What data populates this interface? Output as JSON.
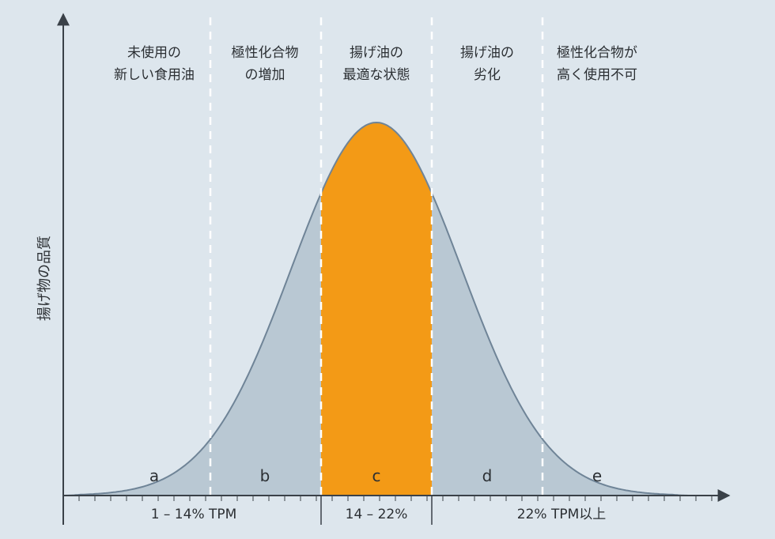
{
  "chart_data": {
    "type": "area",
    "ylabel": "揚げ物の品質",
    "zones": [
      {
        "letter": "a",
        "title": [
          "未使用の",
          "新しい食用油"
        ]
      },
      {
        "letter": "b",
        "title": [
          "極性化合物",
          "の増加"
        ]
      },
      {
        "letter": "c",
        "title": [
          "揚げ油の",
          "最適な状態"
        ]
      },
      {
        "letter": "d",
        "title": [
          "揚げ油の",
          "劣化"
        ]
      },
      {
        "letter": "e",
        "title": [
          "極性化合物が",
          "高く使用不可"
        ]
      }
    ],
    "ranges": [
      {
        "label": "1 – 14% TPM"
      },
      {
        "label": "14 – 22%"
      },
      {
        "label": "22% TPM以上"
      }
    ],
    "highlight_zone": "c",
    "colors": {
      "background": "#dde6ed",
      "curve_fill": "#b9c8d3",
      "curve_stroke": "#6f8497",
      "highlight": "#f39a16",
      "axis": "#3a4148",
      "divider": "#ffffff"
    }
  }
}
